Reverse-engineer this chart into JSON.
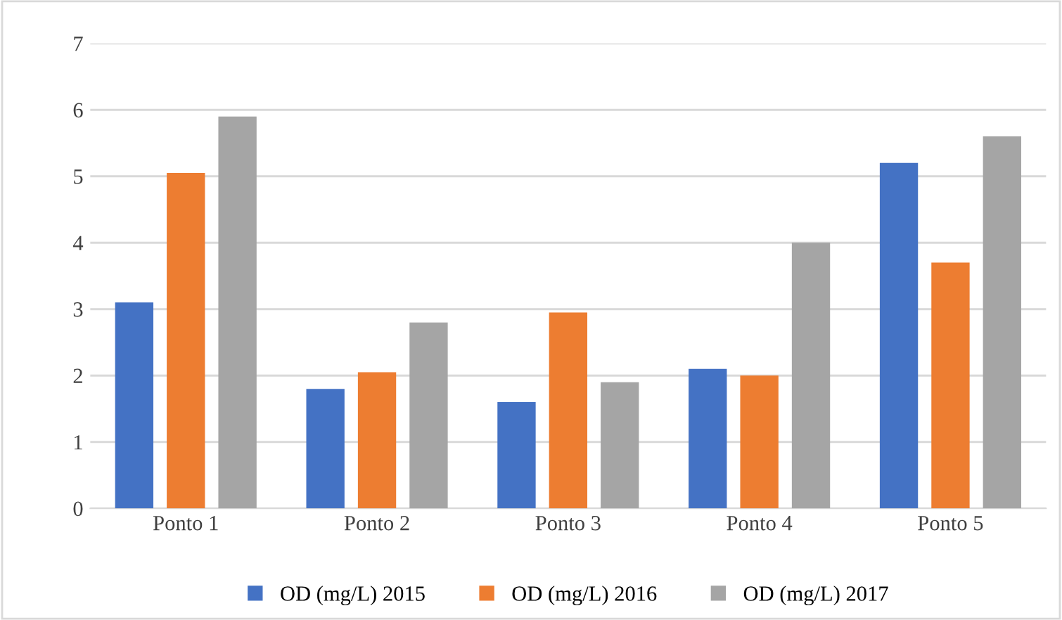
{
  "chart_data": {
    "type": "bar",
    "categories": [
      "Ponto 1",
      "Ponto 2",
      "Ponto 3",
      "Ponto 4",
      "Ponto 5"
    ],
    "series": [
      {
        "name": "OD (mg/L) 2015",
        "color": "#4472c4",
        "values": [
          3.1,
          1.8,
          1.6,
          2.1,
          5.2
        ]
      },
      {
        "name": "OD (mg/L) 2016",
        "color": "#ed7d31",
        "values": [
          5.05,
          2.05,
          2.95,
          2.0,
          3.7
        ]
      },
      {
        "name": "OD (mg/L) 2017",
        "color": "#a5a5a5",
        "values": [
          5.9,
          2.8,
          1.9,
          4.0,
          5.6
        ]
      }
    ],
    "ylim": [
      0,
      7
    ],
    "yticks": [
      0,
      1,
      2,
      3,
      4,
      5,
      6,
      7
    ],
    "grid": "y",
    "legend": "bottom"
  }
}
